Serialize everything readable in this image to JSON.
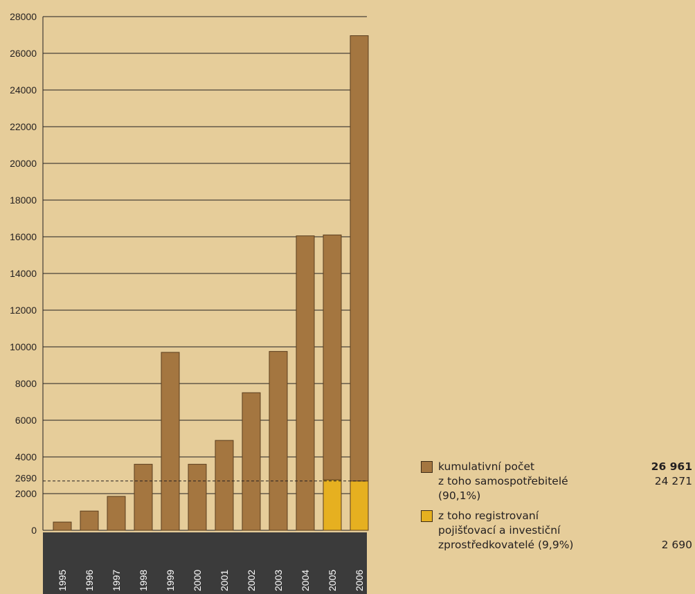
{
  "colors": {
    "background": "#e6cd9a",
    "bar": "#a47640",
    "bar_stroke": "#5a3d1e",
    "highlight": "#e6b020",
    "axis_band": "#3b3b3b"
  },
  "chart_data": {
    "type": "bar",
    "stacked": true,
    "categories": [
      "1995",
      "1996",
      "1997",
      "1998",
      "1999",
      "2000",
      "2001",
      "2002",
      "2003",
      "2004",
      "2005",
      "2006"
    ],
    "series": [
      {
        "name": "kumulativní počet",
        "values": [
          450,
          1050,
          1850,
          3600,
          9700,
          3600,
          4900,
          7500,
          9750,
          16050,
          13350,
          24271
        ],
        "color": "#a47640"
      },
      {
        "name": "z toho registrovaní pojišťovací a investiční zprostředkovatelé (9,9%)",
        "values": [
          0,
          0,
          0,
          0,
          0,
          0,
          0,
          0,
          0,
          0,
          2750,
          2690
        ],
        "color": "#e6b020"
      }
    ],
    "ylim": [
      0,
      28000
    ],
    "yticks": [
      0,
      2000,
      4000,
      6000,
      8000,
      10000,
      12000,
      14000,
      16000,
      18000,
      20000,
      22000,
      24000,
      26000,
      28000
    ],
    "reference_line": {
      "value": 2690,
      "label": "2690",
      "style": "dashed"
    },
    "grid": true,
    "xlabel": "",
    "ylabel": "",
    "title": ""
  },
  "legend": {
    "items": [
      {
        "label": "kumulativní počet",
        "value": "26 961",
        "bold": true,
        "swatch": "#a47640"
      },
      {
        "label": "z toho samospotřebitelé",
        "label2": "(90,1%)",
        "value": "24 271",
        "swatch": null
      },
      {
        "label": "z toho registrovaní",
        "label2": "pojišťovací a investiční",
        "label3": "zprostředkovatelé (9,9%)",
        "value": "2 690",
        "swatch": "#e6b020"
      }
    ]
  }
}
